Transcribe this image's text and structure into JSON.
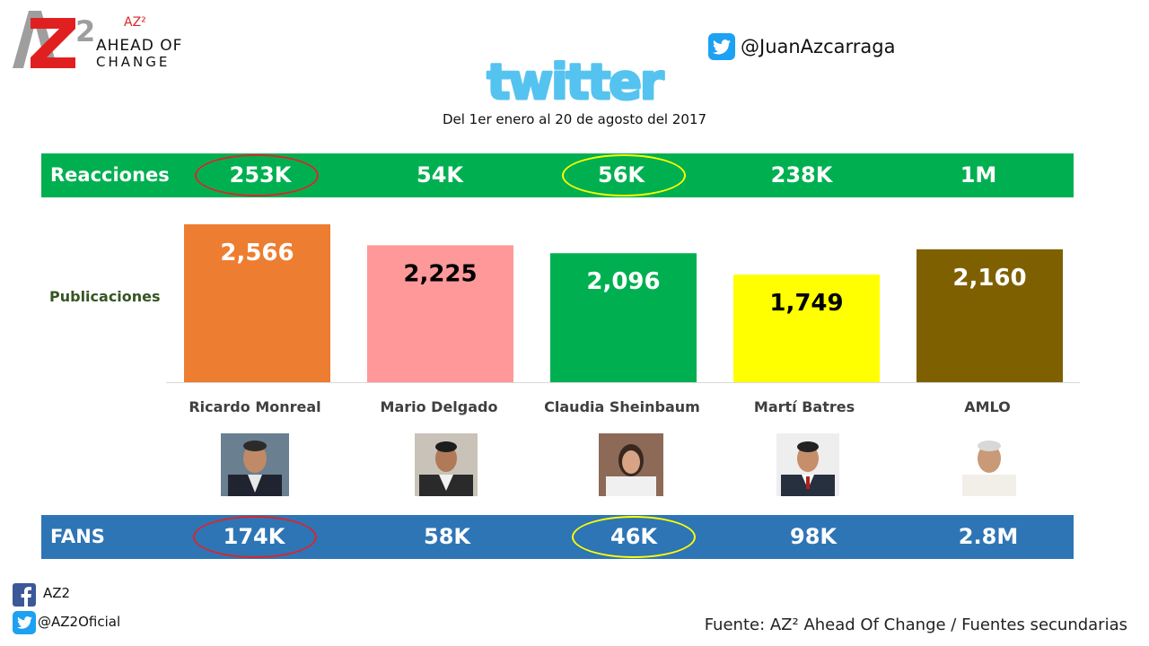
{
  "brand": {
    "logo_sup": "AZ²",
    "line1": "AHEAD OF",
    "line2": "CHANGE",
    "accent_color": "#d9262b"
  },
  "handle": {
    "icon": "twitter-icon",
    "text": "@JuanAzcarraga"
  },
  "wordmark": {
    "text": "twitter",
    "color": "#55c3f0"
  },
  "subtitle": "Del 1er enero al 20 de agosto del 2017",
  "reactions": {
    "label": "Reacciones",
    "color": "#00b050",
    "values": [
      "253K",
      "54K",
      "56K",
      "238K",
      "1M"
    ],
    "highlights": [
      {
        "index": 0,
        "color": "#d9262b"
      },
      {
        "index": 2,
        "color": "#ffff00"
      }
    ]
  },
  "fans": {
    "label": "FANS",
    "color": "#2e75b6",
    "values": [
      "174K",
      "58K",
      "46K",
      "98K",
      "2.8M"
    ],
    "highlights": [
      {
        "index": 0,
        "color": "#d9262b"
      },
      {
        "index": 2,
        "color": "#ffff00"
      }
    ]
  },
  "chart_data": {
    "type": "bar",
    "ylabel": "Publicaciones",
    "categories": [
      "Ricardo Monreal",
      "Mario Delgado",
      "Claudia Sheinbaum",
      "Martí Batres",
      "AMLO"
    ],
    "values": [
      2566,
      2225,
      2096,
      1749,
      2160
    ],
    "value_labels": [
      "2,566",
      "2,225",
      "2,096",
      "1,749",
      "2,160"
    ],
    "colors": [
      "#ed7d31",
      "#ff9999",
      "#00b050",
      "#ffff00",
      "#7f6000"
    ],
    "label_colors": [
      "#ffffff",
      "#000000",
      "#ffffff",
      "#000000",
      "#ffffff"
    ],
    "ylim": [
      0,
      2566
    ],
    "grid": false
  },
  "footer": {
    "facebook_icon": "facebook-icon",
    "facebook_text": "AZ2",
    "twitter_icon": "twitter-icon",
    "twitter_text": "@AZ2Oficial",
    "source": "Fuente: AZ² Ahead Of Change / Fuentes secundarias"
  }
}
